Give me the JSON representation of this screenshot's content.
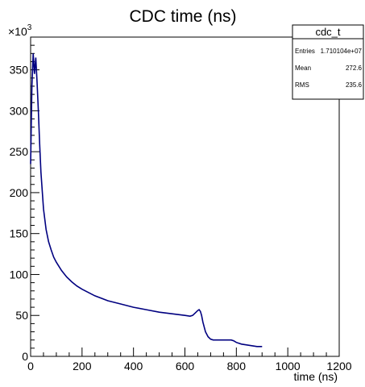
{
  "chart_data": {
    "type": "line",
    "title": "CDC time (ns)",
    "xlabel": "time (ns)",
    "ylabel": "",
    "y_multiplier_label": "×10",
    "y_multiplier_exponent": "3",
    "xlim": [
      0,
      1200
    ],
    "ylim": [
      0,
      390
    ],
    "x_ticks": [
      0,
      200,
      400,
      600,
      800,
      1000,
      1200
    ],
    "y_ticks": [
      0,
      50,
      100,
      150,
      200,
      250,
      300,
      350
    ],
    "grid": false,
    "series": [
      {
        "color": "#000080",
        "x": [
          0,
          5,
          10,
          15,
          20,
          25,
          30,
          35,
          40,
          50,
          60,
          70,
          80,
          90,
          100,
          120,
          140,
          160,
          180,
          200,
          250,
          300,
          350,
          400,
          450,
          500,
          550,
          600,
          620,
          630,
          640,
          650,
          655,
          660,
          665,
          670,
          680,
          690,
          700,
          710,
          720,
          740,
          760,
          780,
          790,
          800,
          820,
          840,
          860,
          880,
          900
        ],
        "y": [
          235,
          330,
          370,
          345,
          365,
          335,
          300,
          260,
          225,
          180,
          155,
          140,
          130,
          121,
          115,
          105,
          97,
          91,
          86,
          82,
          74,
          68,
          64,
          60,
          57,
          54,
          52,
          50,
          49,
          50,
          53,
          56,
          57,
          55,
          50,
          42,
          30,
          24,
          21,
          20,
          20,
          20,
          20,
          20,
          19,
          17,
          15,
          14,
          13,
          12,
          12
        ]
      }
    ],
    "stats_box": {
      "name": "cdc_t",
      "rows": [
        {
          "label": "Entries",
          "value": "1.710104e+07"
        },
        {
          "label": "Mean",
          "value": "272.6"
        },
        {
          "label": "RMS",
          "value": "235.6"
        }
      ]
    }
  }
}
